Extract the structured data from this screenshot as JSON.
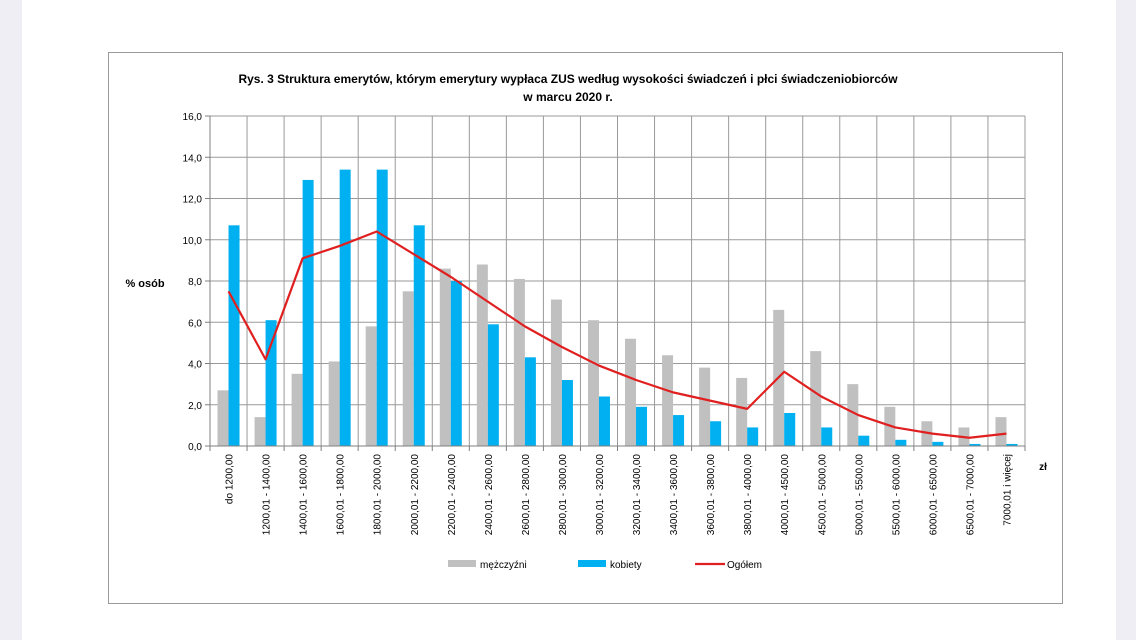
{
  "chart_data": {
    "type": "bar",
    "title": "Rys. 3 Struktura emerytów, którym emerytury wypłaca ZUS według wysokości świadczeń i płci świadczeniobiorców",
    "subtitle": "w marcu 2020 r.",
    "ylabel": "% osób",
    "xlabel": "zł",
    "ylim": [
      0,
      16
    ],
    "yticks": [
      "0,0",
      "2,0",
      "4,0",
      "6,0",
      "8,0",
      "10,0",
      "12,0",
      "14,0",
      "16,0"
    ],
    "grid": true,
    "legend_position": "bottom",
    "categories": [
      "do  1200,00",
      "1200,01 - 1400,00",
      "1400,01 - 1600,00",
      "1600,01 - 1800,00",
      "1800,01 - 2000,00",
      "2000,01 - 2200,00",
      "2200,01 - 2400,00",
      "2400,01 - 2600,00",
      "2600,01 - 2800,00",
      "2800,01 - 3000,00",
      "3000,01 - 3200,00",
      "3200,01 - 3400,00",
      "3400,01 - 3600,00",
      "3600,01 - 3800,00",
      "3800,01 - 4000,00",
      "4000,01 - 4500,00",
      "4500,01 - 5000,00",
      "5000,01 - 5500,00",
      "5500,01 - 6000,00",
      "6000,01 - 6500,00",
      "6500,01 - 7000,00",
      "7000,01 i więcej"
    ],
    "series": [
      {
        "name": "mężczyźni",
        "type": "bar",
        "color": "#c0c0c0",
        "values": [
          2.7,
          1.4,
          3.5,
          4.1,
          5.8,
          7.5,
          8.6,
          8.8,
          8.1,
          7.1,
          6.1,
          5.2,
          4.4,
          3.8,
          3.3,
          6.6,
          4.6,
          3.0,
          1.9,
          1.2,
          0.9,
          1.4
        ]
      },
      {
        "name": "kobiety",
        "type": "bar",
        "color": "#00b0f0",
        "values": [
          10.7,
          6.1,
          12.9,
          13.4,
          13.4,
          10.7,
          8.0,
          5.9,
          4.3,
          3.2,
          2.4,
          1.9,
          1.5,
          1.2,
          0.9,
          1.6,
          0.9,
          0.5,
          0.3,
          0.2,
          0.1,
          0.1
        ]
      },
      {
        "name": "Ogółem",
        "type": "line",
        "color": "#e02020",
        "values": [
          7.5,
          4.2,
          9.1,
          9.7,
          10.4,
          9.3,
          8.2,
          7.0,
          5.8,
          4.8,
          3.9,
          3.2,
          2.6,
          2.2,
          1.8,
          3.6,
          2.4,
          1.5,
          0.9,
          0.6,
          0.4,
          0.6
        ]
      }
    ]
  }
}
